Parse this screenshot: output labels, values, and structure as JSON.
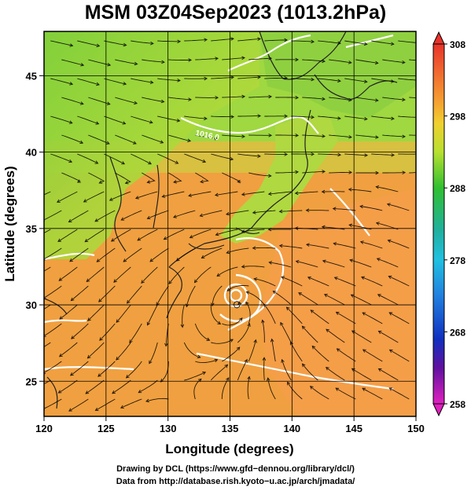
{
  "title": "MSM 03Z04Sep2023 (1013.2hPa)",
  "map": {
    "xlabel": "Longitude (degrees)",
    "ylabel": "Latitude  (degrees)",
    "lon_range": [
      120,
      150
    ],
    "lat_range": [
      22.7,
      47.9
    ],
    "lon_ticks": [
      "120",
      "125",
      "130",
      "135",
      "140",
      "145",
      "150"
    ],
    "lat_ticks": [
      "25",
      "30",
      "35",
      "40",
      "45"
    ],
    "contour_labels": [
      "1016.0"
    ],
    "typhoon_center": {
      "lon": 135.6,
      "lat": 30.1
    }
  },
  "colorbar": {
    "labels": [
      "308",
      "298",
      "288",
      "278",
      "268",
      "258"
    ],
    "min": 258,
    "max": 308
  },
  "credits": {
    "line1": "Drawing by DCL (https://www.gfd−dennou.org/library/dcl/)",
    "line2": "Data from http://database.rish.kyoto−u.ac.jp/arch/jmadata/"
  }
}
